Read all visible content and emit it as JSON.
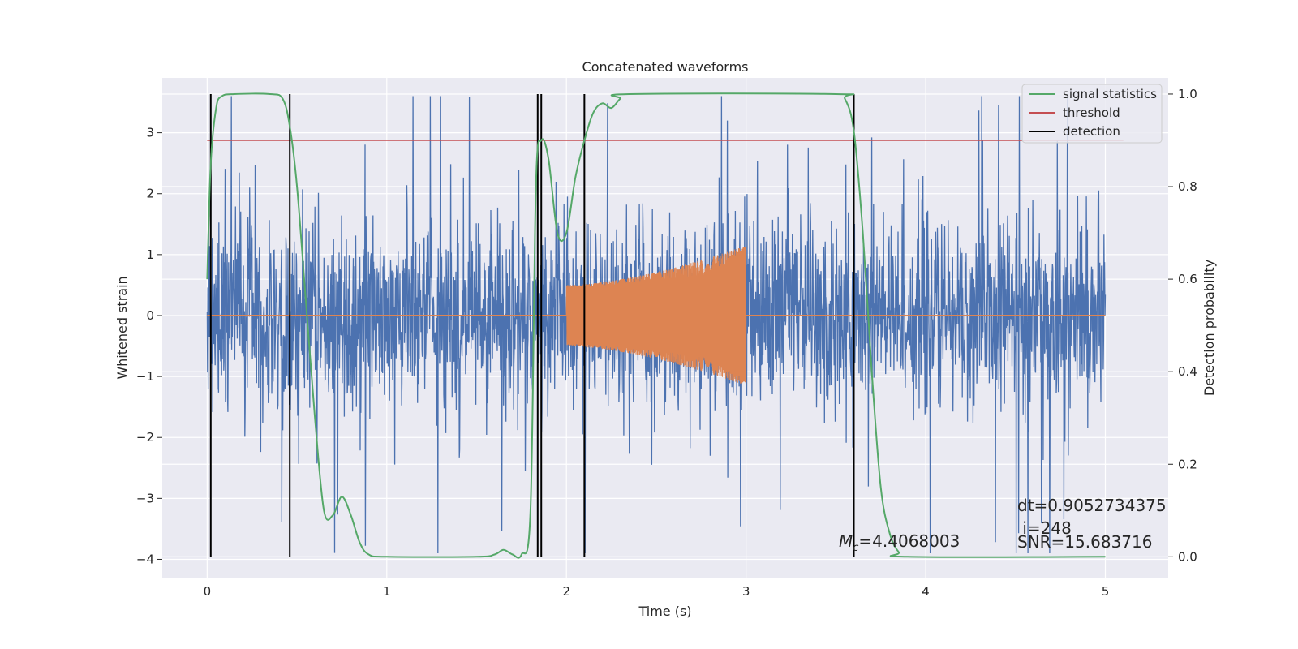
{
  "chart_data": {
    "type": "line",
    "title": "Concatenated waveforms",
    "xlabel": "Time (s)",
    "ylabel": "Whitened strain",
    "y2label": "Detection probability",
    "xlim": [
      -0.25,
      5.35
    ],
    "ylim": [
      -4.3,
      3.9
    ],
    "y2lim": [
      -0.045,
      1.035
    ],
    "xticks": [
      "0",
      "1",
      "2",
      "3",
      "4",
      "5"
    ],
    "yticks": [
      "−4",
      "−3",
      "−2",
      "−1",
      "0",
      "1",
      "2",
      "3"
    ],
    "y2ticks": [
      "0.0",
      "0.2",
      "0.4",
      "0.6",
      "0.8",
      "1.0"
    ],
    "grid": true,
    "legend_position": "top-right",
    "legend": [
      {
        "name": "signal statistics",
        "color": "#55a868"
      },
      {
        "name": "threshold",
        "color": "#c44e52"
      },
      {
        "name": "detection",
        "color": "#000000"
      }
    ],
    "series": [
      {
        "name": "Whitened strain",
        "axis": "left",
        "color": "#4c72b0",
        "x_range": [
          0,
          5
        ],
        "envelope": [
          2.4,
          -2.4
        ],
        "peak_range": [
          -3.9,
          3.6
        ]
      },
      {
        "name": "Injected waveform",
        "axis": "left",
        "color": "#dd8452",
        "x_range": [
          2.0,
          3.0
        ],
        "amplitude_start": 0.5,
        "amplitude_end": 1.15
      },
      {
        "name": "signal statistics",
        "axis": "right",
        "color": "#55a868",
        "points": [
          [
            0.0,
            0.6
          ],
          [
            0.02,
            0.85
          ],
          [
            0.05,
            0.97
          ],
          [
            0.08,
            0.995
          ],
          [
            0.15,
            1.0
          ],
          [
            0.35,
            1.0
          ],
          [
            0.42,
            0.99
          ],
          [
            0.46,
            0.93
          ],
          [
            0.5,
            0.8
          ],
          [
            0.55,
            0.55
          ],
          [
            0.6,
            0.3
          ],
          [
            0.65,
            0.1
          ],
          [
            0.7,
            0.09
          ],
          [
            0.75,
            0.13
          ],
          [
            0.8,
            0.09
          ],
          [
            0.85,
            0.03
          ],
          [
            0.9,
            0.005
          ],
          [
            1.0,
            0.0
          ],
          [
            1.5,
            0.0
          ],
          [
            1.6,
            0.005
          ],
          [
            1.65,
            0.015
          ],
          [
            1.7,
            0.005
          ],
          [
            1.75,
            0.005
          ],
          [
            1.8,
            0.1
          ],
          [
            1.83,
            0.8
          ],
          [
            1.86,
            0.9
          ],
          [
            1.9,
            0.86
          ],
          [
            1.95,
            0.7
          ],
          [
            2.0,
            0.7
          ],
          [
            2.05,
            0.82
          ],
          [
            2.1,
            0.9
          ],
          [
            2.15,
            0.96
          ],
          [
            2.2,
            0.98
          ],
          [
            2.25,
            0.97
          ],
          [
            2.3,
            0.99
          ],
          [
            2.35,
            1.0
          ],
          [
            3.5,
            1.0
          ],
          [
            3.55,
            0.99
          ],
          [
            3.6,
            0.92
          ],
          [
            3.65,
            0.7
          ],
          [
            3.7,
            0.4
          ],
          [
            3.75,
            0.15
          ],
          [
            3.8,
            0.05
          ],
          [
            3.85,
            0.01
          ],
          [
            3.9,
            0.0
          ],
          [
            5.0,
            0.0
          ]
        ]
      },
      {
        "name": "threshold",
        "axis": "right",
        "color": "#c44e52",
        "y": 0.9,
        "x_range": [
          0,
          5.1
        ]
      },
      {
        "name": "detection",
        "axis": "right",
        "color": "#000000",
        "x": [
          0.02,
          0.46,
          1.84,
          1.86,
          2.1,
          3.6
        ],
        "y_range": [
          0,
          1
        ]
      }
    ],
    "annotations": [
      {
        "text": "dt=0.9052734375"
      },
      {
        "text": " i=248"
      },
      {
        "text": "SNR=15.683716"
      },
      {
        "symbol": "M",
        "subscript": "c",
        "value": "=4.4068003"
      }
    ]
  }
}
